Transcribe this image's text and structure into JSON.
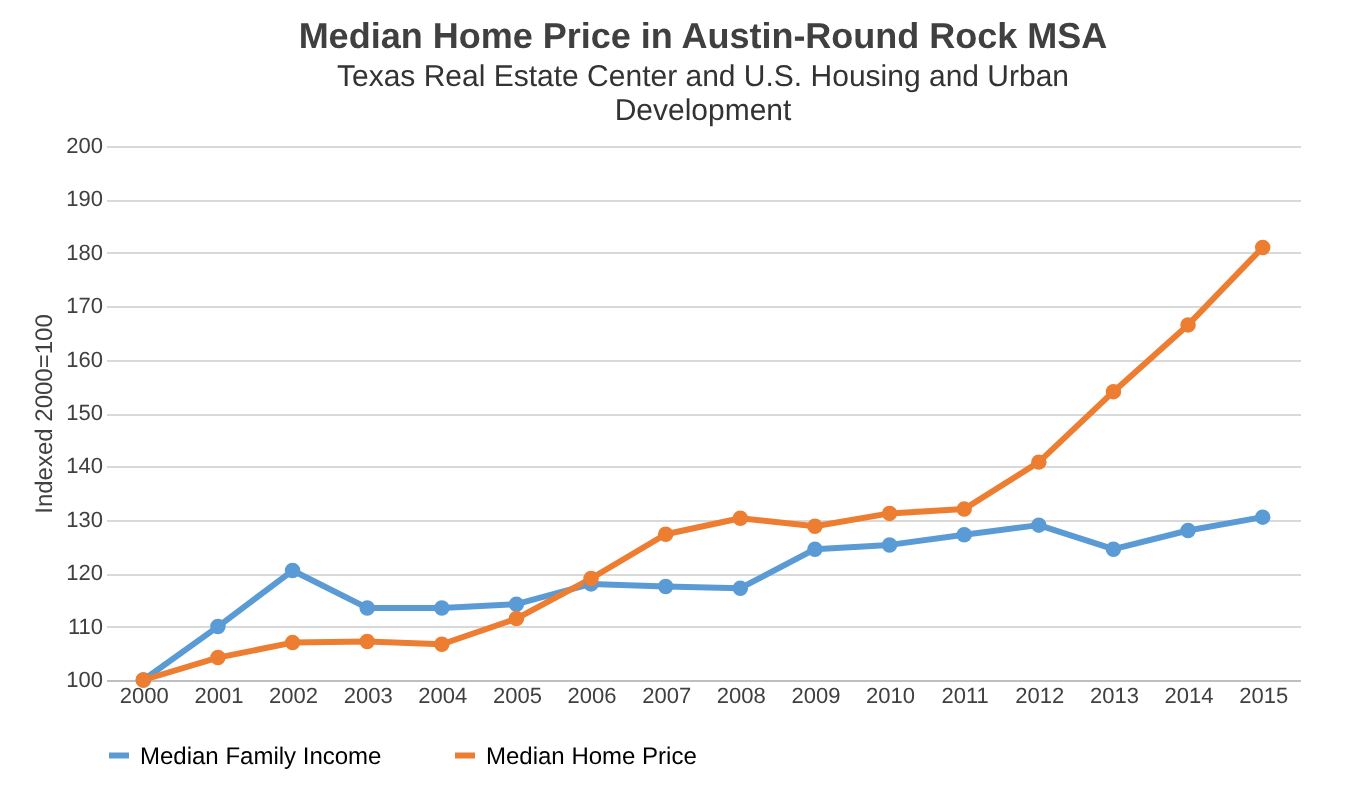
{
  "chart_data": {
    "type": "line",
    "title": "Median Home Price in Austin-Round Rock MSA",
    "subtitle": "Texas Real Estate Center and U.S. Housing and Urban Development",
    "ylabel": "Indexed 2000=100",
    "categories": [
      "2000",
      "2001",
      "2002",
      "2003",
      "2004",
      "2005",
      "2006",
      "2007",
      "2008",
      "2009",
      "2010",
      "2011",
      "2012",
      "2013",
      "2014",
      "2015"
    ],
    "series": [
      {
        "name": "Median Family Income",
        "color": "#5b9bd5",
        "values": [
          100,
          110,
          120.5,
          113.5,
          113.5,
          114.2,
          118,
          117.5,
          117.2,
          124.5,
          125.3,
          127.2,
          129,
          124.5,
          128,
          130.5
        ]
      },
      {
        "name": "Median Home Price",
        "color": "#ed7d31",
        "values": [
          100,
          104.2,
          107,
          107.2,
          106.7,
          111.5,
          119,
          127.3,
          130.3,
          128.8,
          131.2,
          132,
          140.8,
          154,
          166.5,
          181
        ]
      }
    ],
    "ylim": [
      100,
      200
    ],
    "yticks": [
      100,
      110,
      120,
      130,
      140,
      150,
      160,
      170,
      180,
      190,
      200
    ],
    "grid": "y",
    "legend": "bottom",
    "marker": "circle",
    "line_style": "solid"
  }
}
